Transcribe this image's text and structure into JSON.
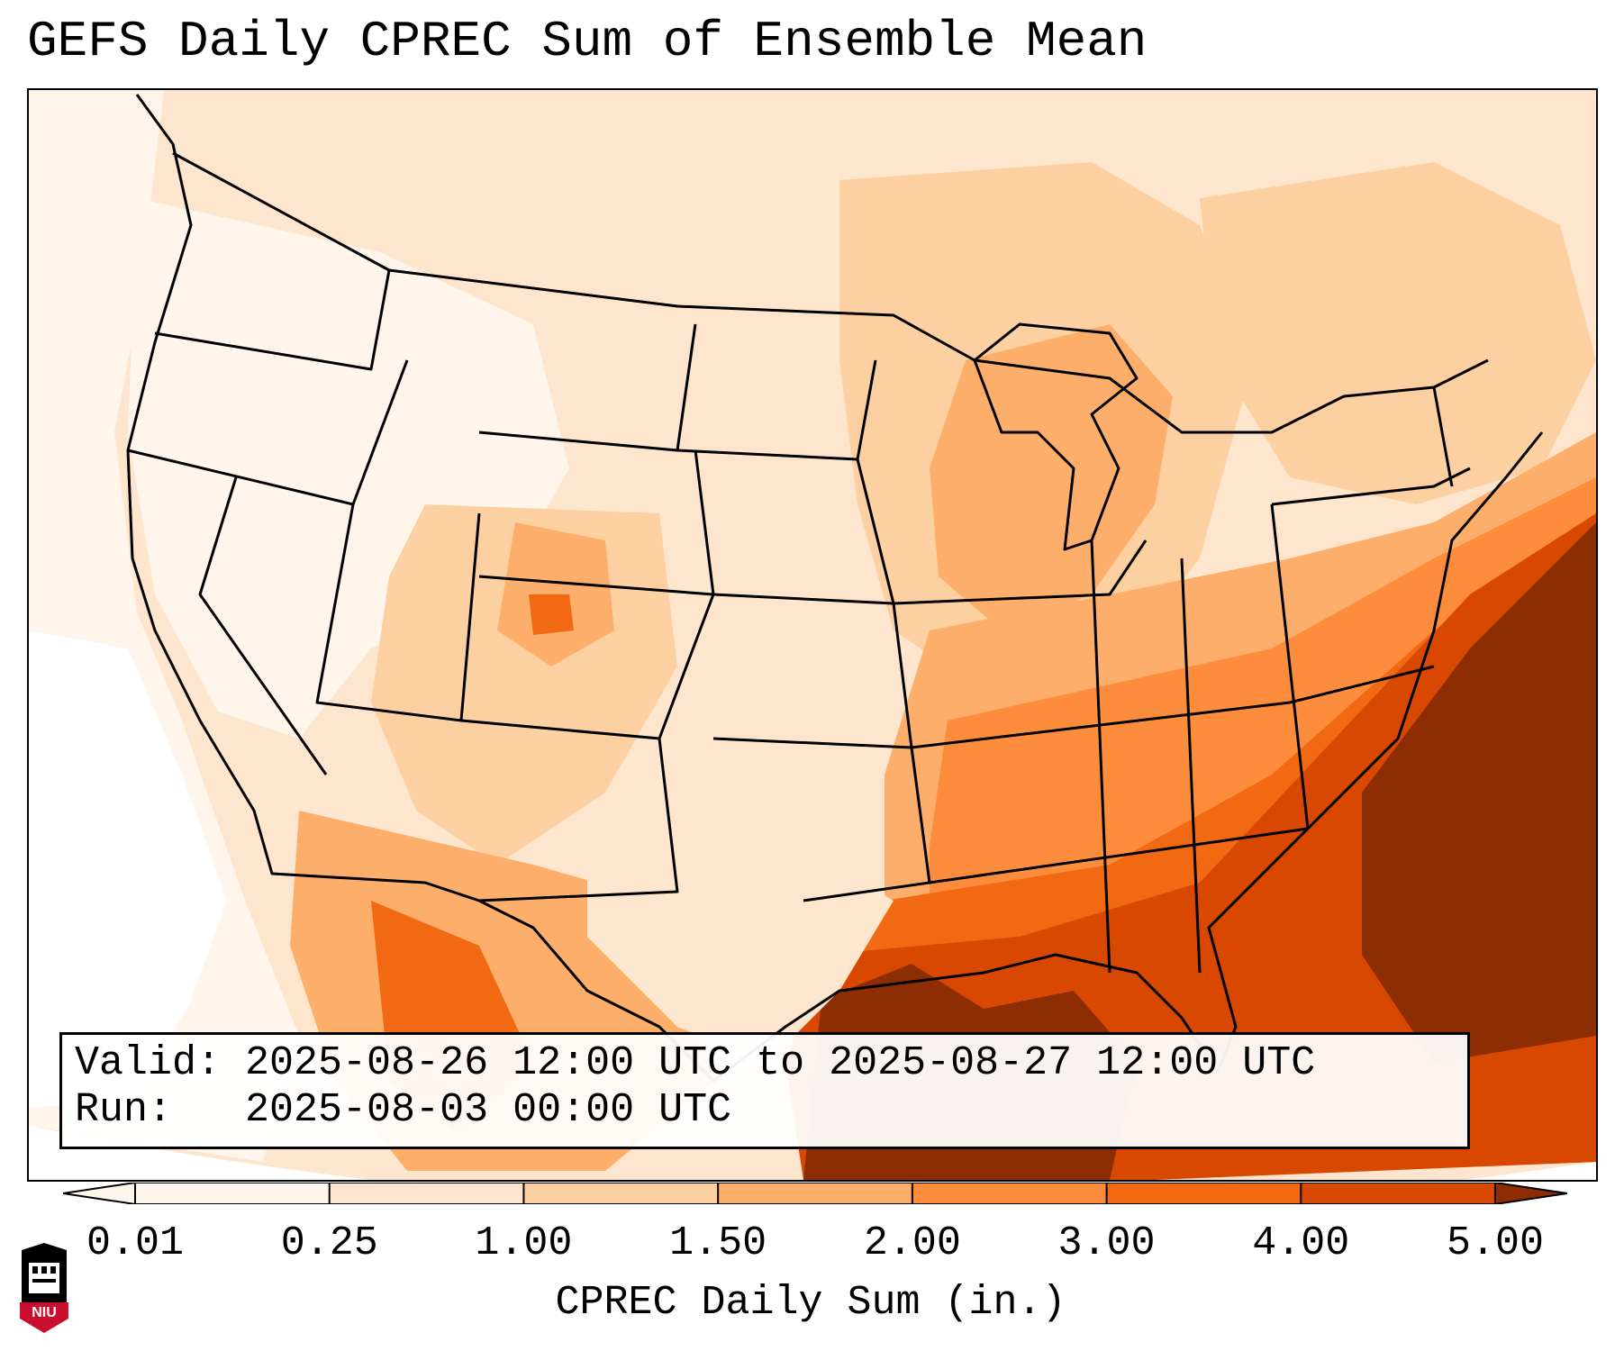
{
  "title": "GEFS Daily CPREC Sum of Ensemble Mean",
  "info": {
    "valid_line": "Valid: 2025-08-26 12:00 UTC to 2025-08-27 12:00 UTC",
    "run_line": "Run:   2025-08-03 00:00 UTC"
  },
  "colorbar": {
    "label": "CPREC Daily Sum (in.)",
    "ticks": [
      "0.01",
      "0.25",
      "1.00",
      "1.50",
      "2.00",
      "3.00",
      "4.00",
      "5.00"
    ],
    "colors": [
      "#fff5eb",
      "#fee6ce",
      "#fdd0a2",
      "#fdae6b",
      "#fd8d3c",
      "#f16913",
      "#d94801",
      "#8c2d04"
    ]
  },
  "logo": {
    "text": "NIU"
  }
}
